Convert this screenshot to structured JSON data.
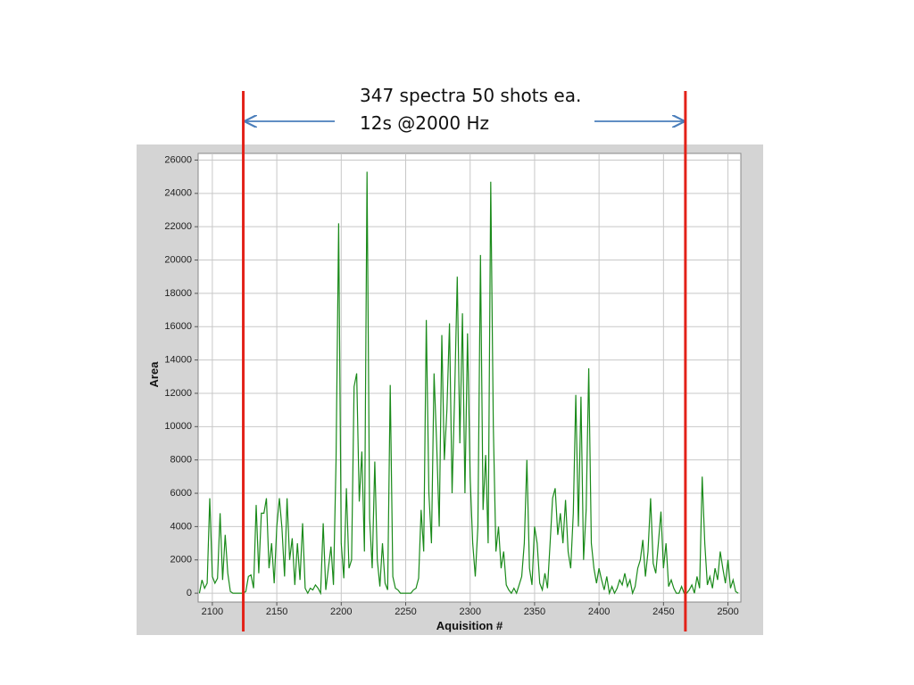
{
  "chart_data": {
    "type": "line",
    "annotations": [
      "347 spectra 50 shots ea.",
      "12s @2000 Hz"
    ],
    "xlabel": "Aquisition #",
    "ylabel": "Area",
    "x": [
      2090,
      2092,
      2094,
      2096,
      2098,
      2100,
      2102,
      2104,
      2106,
      2108,
      2110,
      2112,
      2114,
      2116,
      2118,
      2120,
      2122,
      2124,
      2126,
      2128,
      2130,
      2132,
      2134,
      2136,
      2138,
      2140,
      2142,
      2144,
      2146,
      2148,
      2150,
      2152,
      2154,
      2156,
      2158,
      2160,
      2162,
      2164,
      2166,
      2168,
      2170,
      2172,
      2174,
      2176,
      2178,
      2180,
      2182,
      2184,
      2186,
      2188,
      2190,
      2192,
      2194,
      2196,
      2198,
      2200,
      2202,
      2204,
      2206,
      2208,
      2210,
      2212,
      2214,
      2216,
      2218,
      2220,
      2222,
      2224,
      2226,
      2228,
      2230,
      2232,
      2234,
      2236,
      2238,
      2240,
      2242,
      2244,
      2246,
      2248,
      2250,
      2252,
      2254,
      2256,
      2258,
      2260,
      2262,
      2264,
      2266,
      2268,
      2270,
      2272,
      2274,
      2276,
      2278,
      2280,
      2282,
      2284,
      2286,
      2288,
      2290,
      2292,
      2294,
      2296,
      2298,
      2300,
      2302,
      2304,
      2306,
      2308,
      2310,
      2312,
      2314,
      2316,
      2318,
      2320,
      2322,
      2324,
      2326,
      2328,
      2330,
      2332,
      2334,
      2336,
      2338,
      2340,
      2342,
      2344,
      2346,
      2348,
      2350,
      2352,
      2354,
      2356,
      2358,
      2360,
      2362,
      2364,
      2366,
      2368,
      2370,
      2372,
      2374,
      2376,
      2378,
      2380,
      2382,
      2384,
      2386,
      2388,
      2390,
      2392,
      2394,
      2396,
      2398,
      2400,
      2402,
      2404,
      2406,
      2408,
      2410,
      2412,
      2414,
      2416,
      2418,
      2420,
      2422,
      2424,
      2426,
      2428,
      2430,
      2432,
      2434,
      2436,
      2438,
      2440,
      2442,
      2444,
      2446,
      2448,
      2450,
      2452,
      2454,
      2456,
      2458,
      2460,
      2462,
      2464,
      2466,
      2468,
      2470,
      2472,
      2474,
      2476,
      2478,
      2480,
      2482,
      2484,
      2486,
      2488,
      2490,
      2492,
      2494,
      2496,
      2498,
      2500,
      2502,
      2504,
      2506,
      2508
    ],
    "series": [
      {
        "color": "#1a8a1a",
        "values": [
          0,
          800,
          300,
          600,
          5700,
          1000,
          600,
          900,
          4800,
          800,
          3500,
          1200,
          100,
          0,
          0,
          0,
          0,
          0,
          100,
          1000,
          1100,
          300,
          5300,
          1200,
          4800,
          4800,
          5700,
          1500,
          3000,
          600,
          4000,
          5700,
          3900,
          1000,
          5700,
          2000,
          3300,
          500,
          3000,
          800,
          4200,
          300,
          0,
          300,
          200,
          500,
          300,
          0,
          4200,
          200,
          1500,
          2800,
          500,
          8000,
          22200,
          3000,
          900,
          6300,
          1500,
          2000,
          12400,
          13200,
          5500,
          8500,
          2500,
          25300,
          4500,
          1500,
          7900,
          2000,
          400,
          3000,
          600,
          200,
          12500,
          1000,
          300,
          200,
          0,
          0,
          0,
          0,
          0,
          200,
          300,
          900,
          5000,
          2500,
          16400,
          6000,
          3000,
          13200,
          9000,
          4000,
          15500,
          8000,
          11000,
          16200,
          6000,
          12000,
          19000,
          9000,
          16800,
          6000,
          15600,
          7000,
          3000,
          1000,
          4000,
          20300,
          5000,
          8300,
          3000,
          24700,
          10000,
          2500,
          4000,
          1500,
          2500,
          500,
          200,
          0,
          300,
          0,
          500,
          1000,
          3000,
          8000,
          1500,
          500,
          4000,
          3000,
          600,
          200,
          1200,
          300,
          3000,
          5700,
          6300,
          3500,
          4800,
          3000,
          5600,
          2500,
          1500,
          4800,
          11900,
          4000,
          11800,
          2000,
          5000,
          13500,
          3000,
          1500,
          600,
          1500,
          800,
          200,
          1000,
          0,
          400,
          0,
          300,
          800,
          500,
          1200,
          400,
          800,
          0,
          400,
          1500,
          2000,
          3200,
          1000,
          2500,
          5700,
          1800,
          1200,
          3000,
          4900,
          1500,
          3000,
          400,
          800,
          300,
          0,
          0,
          400,
          0,
          0,
          200,
          500,
          0,
          1000,
          300,
          7000,
          3000,
          500,
          1000,
          300,
          1500,
          800,
          2500,
          1500,
          600,
          2000,
          300,
          800,
          100,
          0
        ]
      }
    ],
    "xlim": [
      2089,
      2510
    ],
    "ylim": [
      -530,
      26400
    ],
    "xticks": [
      2100,
      2150,
      2200,
      2250,
      2300,
      2350,
      2400,
      2450,
      2500
    ],
    "yticks": [
      0,
      2000,
      4000,
      6000,
      8000,
      10000,
      12000,
      14000,
      16000,
      18000,
      20000,
      22000,
      24000,
      26000
    ],
    "grid": true,
    "markers": {
      "x": [
        2124,
        2467
      ],
      "color": "#e32219"
    }
  }
}
